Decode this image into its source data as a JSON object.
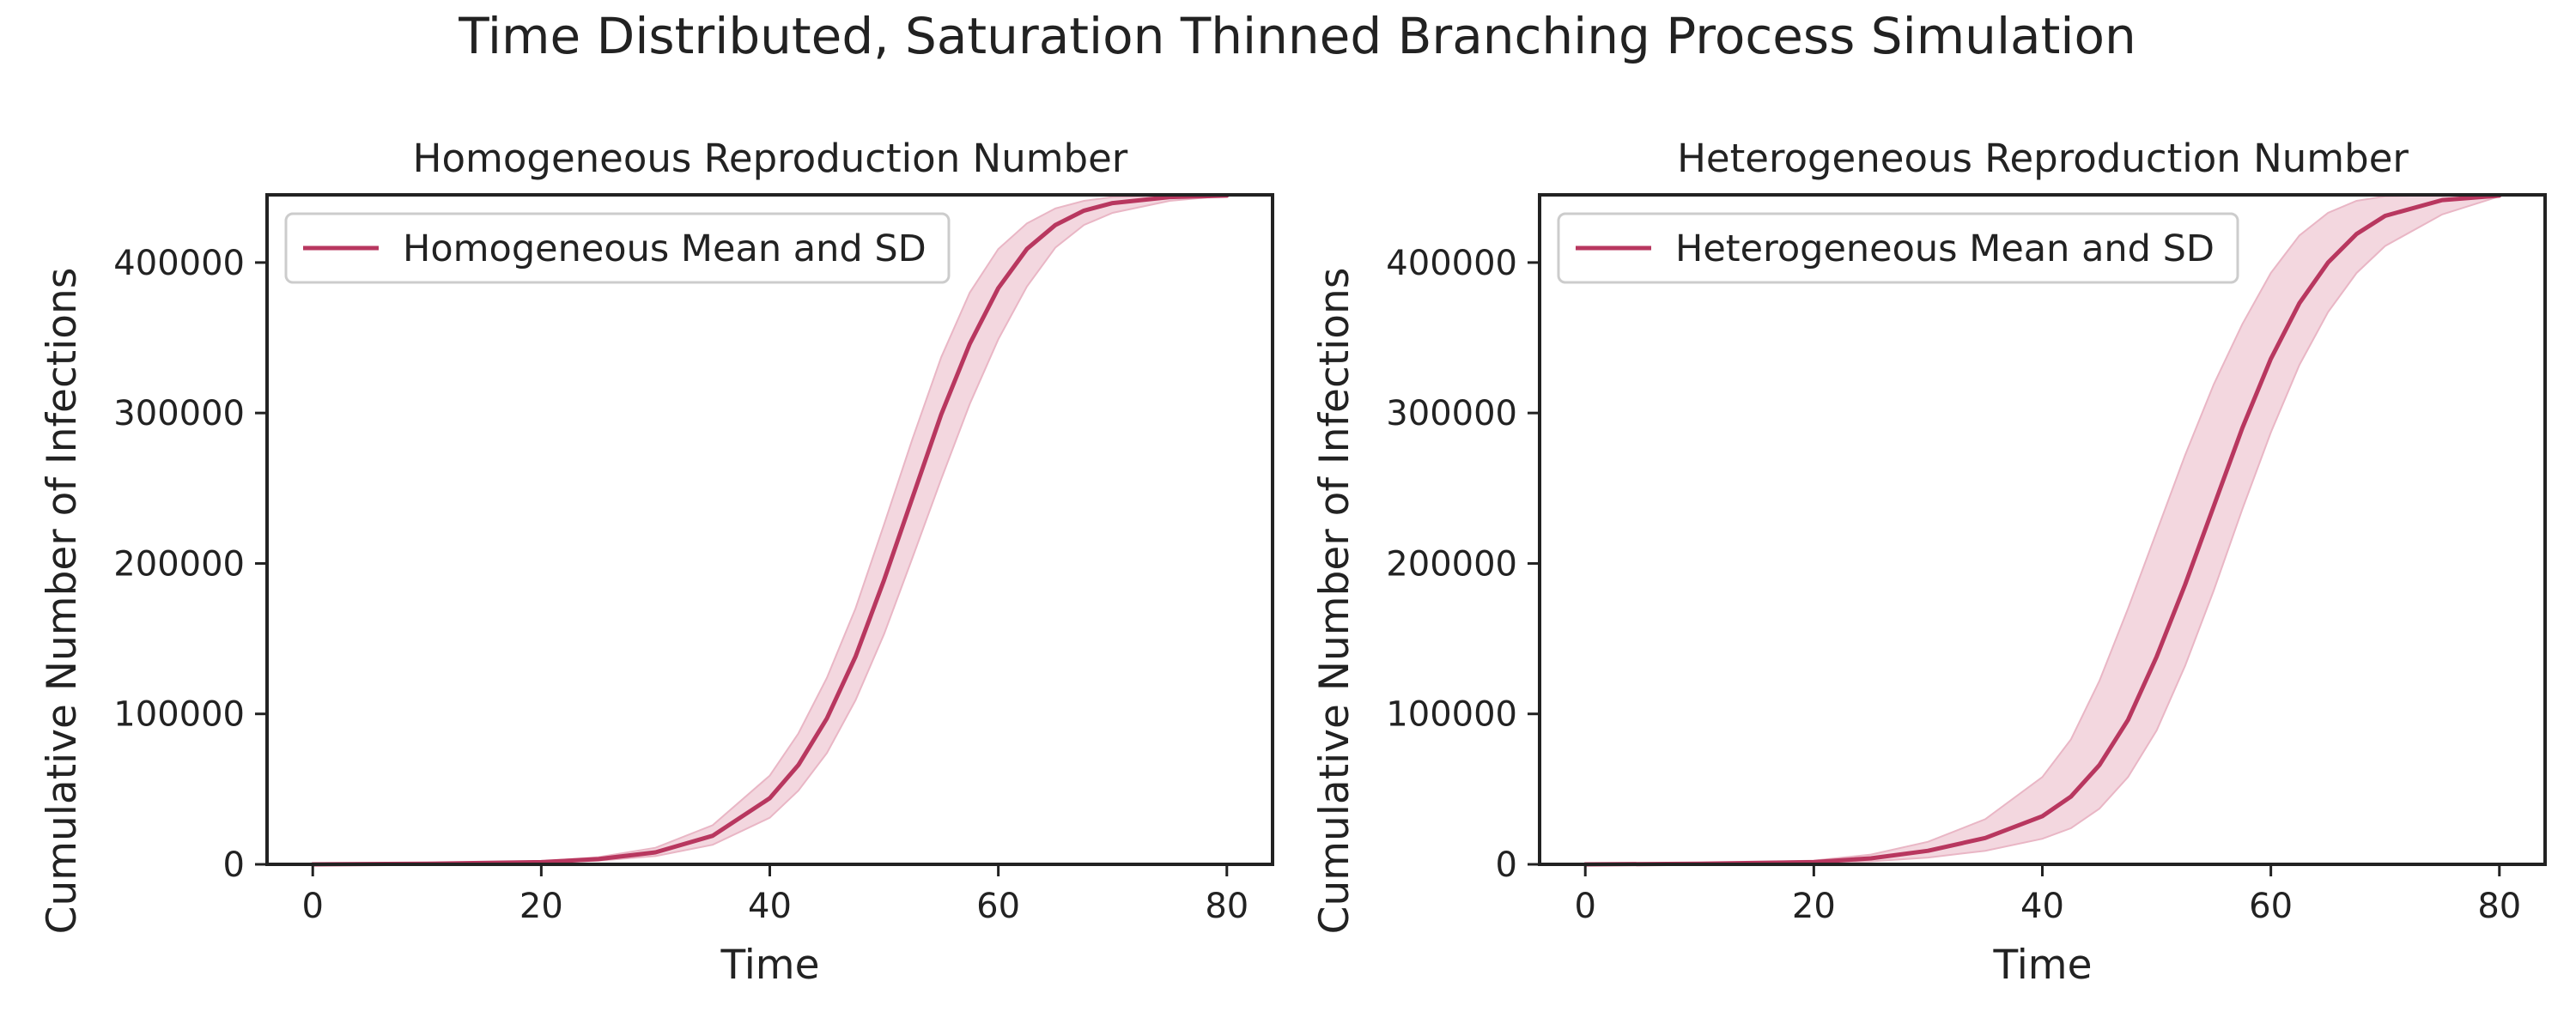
{
  "figure": {
    "title": "Time Distributed, Saturation Thinned Branching Process Simulation"
  },
  "colors": {
    "line": "#b8375f",
    "band": "#e9b6c5",
    "axis": "#222222",
    "background": "#ffffff"
  },
  "chart_data": [
    {
      "type": "line",
      "title": "Homogeneous Reproduction Number",
      "xlabel": "Time",
      "ylabel": "Cumulative Number of Infections",
      "xlim": [
        -4,
        84
      ],
      "ylim": [
        0,
        445000
      ],
      "xticks": [
        0,
        20,
        40,
        60,
        80
      ],
      "yticks": [
        0,
        100000,
        200000,
        300000,
        400000
      ],
      "xtick_labels": [
        "0",
        "20",
        "40",
        "60",
        "80"
      ],
      "ytick_labels": [
        "0",
        "100000",
        "200000",
        "300000",
        "400000"
      ],
      "grid": false,
      "legend_position": "upper-left",
      "series": [
        {
          "name": "Homogeneous Mean and SD",
          "x": [
            0,
            10,
            20,
            25,
            30,
            35,
            40,
            42.5,
            45,
            47.5,
            50,
            52.5,
            55,
            57.5,
            60,
            62.5,
            65,
            67.5,
            70,
            75,
            80
          ],
          "y": [
            0,
            400,
            1500,
            3500,
            8000,
            19000,
            44000,
            66000,
            97000,
            138000,
            189000,
            244000,
            299000,
            346000,
            383000,
            409000,
            425000,
            434500,
            439500,
            443500,
            444500
          ],
          "y_lower": [
            0,
            300,
            1000,
            2400,
            5500,
            13000,
            31000,
            49000,
            74000,
            109000,
            153000,
            204000,
            256000,
            306000,
            349000,
            384000,
            410000,
            425000,
            433000,
            441000,
            444500
          ],
          "y_upper": [
            0,
            500,
            2000,
            4800,
            11000,
            26000,
            59000,
            87000,
            124000,
            170000,
            226000,
            283000,
            337000,
            380000,
            409000,
            426000,
            436000,
            441000,
            443500,
            444500,
            444800
          ]
        }
      ]
    },
    {
      "type": "line",
      "title": "Heterogeneous Reproduction Number",
      "xlabel": "Time",
      "ylabel": "Cumulative Number of Infections",
      "xlim": [
        -4,
        84
      ],
      "ylim": [
        0,
        445000
      ],
      "xticks": [
        0,
        20,
        40,
        60,
        80
      ],
      "yticks": [
        0,
        100000,
        200000,
        300000,
        400000
      ],
      "xtick_labels": [
        "0",
        "20",
        "40",
        "60",
        "80"
      ],
      "ytick_labels": [
        "0",
        "100000",
        "200000",
        "300000",
        "400000"
      ],
      "grid": false,
      "legend_position": "upper-left",
      "series": [
        {
          "name": "Heterogeneous Mean and SD",
          "x": [
            0,
            10,
            20,
            25,
            30,
            35,
            40,
            42.5,
            45,
            47.5,
            50,
            52.5,
            55,
            57.5,
            60,
            62.5,
            65,
            67.5,
            70,
            75,
            80
          ],
          "y": [
            0,
            400,
            1500,
            4000,
            9000,
            17500,
            32000,
            45000,
            66000,
            96000,
            138000,
            186000,
            238000,
            290000,
            336000,
            373000,
            400000,
            419000,
            431000,
            441500,
            444500
          ],
          "y_lower": [
            0,
            200,
            800,
            2000,
            4500,
            9000,
            17000,
            24000,
            37000,
            58000,
            89000,
            132000,
            182000,
            236000,
            287000,
            332000,
            367000,
            393000,
            411000,
            432000,
            444000
          ],
          "y_upper": [
            0,
            600,
            2500,
            6500,
            15000,
            30000,
            58000,
            83000,
            122000,
            170000,
            221000,
            272000,
            319000,
            359000,
            393000,
            418000,
            433000,
            441000,
            444000,
            445000,
            445000
          ]
        }
      ]
    }
  ]
}
